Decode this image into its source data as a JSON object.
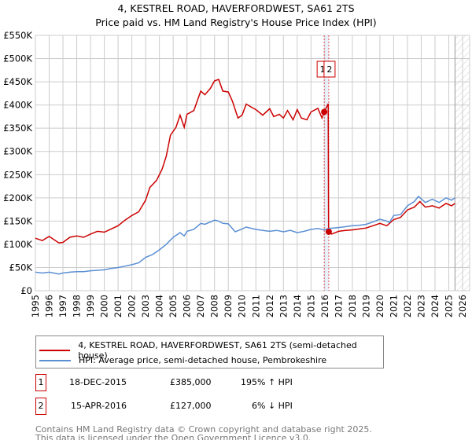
{
  "chart_data": {
    "type": "line",
    "title": "4, KESTREL ROAD, HAVERFORDWEST, SA61 2TS",
    "subtitle": "Price paid vs. HM Land Registry's House Price Index (HPI)",
    "xlabel": "",
    "ylabel": "",
    "xlim": [
      1995,
      2026
    ],
    "ylim": [
      0,
      550000
    ],
    "grid": true,
    "x_ticks": [
      "1995",
      "1996",
      "1997",
      "1998",
      "1999",
      "2000",
      "2001",
      "2002",
      "2003",
      "2004",
      "2005",
      "2006",
      "2007",
      "2008",
      "2009",
      "2010",
      "2011",
      "2012",
      "2013",
      "2014",
      "2015",
      "2016",
      "2017",
      "2018",
      "2019",
      "2020",
      "2021",
      "2022",
      "2023",
      "2024",
      "2025",
      "2026"
    ],
    "y_ticks": [
      {
        "v": 0,
        "label": "£0"
      },
      {
        "v": 50000,
        "label": "£50K"
      },
      {
        "v": 100000,
        "label": "£100K"
      },
      {
        "v": 150000,
        "label": "£150K"
      },
      {
        "v": 200000,
        "label": "£200K"
      },
      {
        "v": 250000,
        "label": "£250K"
      },
      {
        "v": 300000,
        "label": "£300K"
      },
      {
        "v": 350000,
        "label": "£350K"
      },
      {
        "v": 400000,
        "label": "£400K"
      },
      {
        "v": 450000,
        "label": "£450K"
      },
      {
        "v": 500000,
        "label": "£500K"
      },
      {
        "v": 550000,
        "label": "£550K"
      }
    ],
    "forecast_hatch_from": 2025.45,
    "series": [
      {
        "name": "4, KESTREL ROAD, HAVERFORDWEST, SA61 2TS (semi-detached house)",
        "color": "#cc0000",
        "points": [
          [
            1995,
            113
          ],
          [
            1995.5,
            108
          ],
          [
            1996,
            117
          ],
          [
            1996.7,
            103
          ],
          [
            1997,
            104
          ],
          [
            1997.5,
            115
          ],
          [
            1998,
            118
          ],
          [
            1998.5,
            115
          ],
          [
            1999,
            122
          ],
          [
            1999.5,
            128
          ],
          [
            2000,
            126
          ],
          [
            2000.5,
            133
          ],
          [
            2001,
            140
          ],
          [
            2001.5,
            152
          ],
          [
            2002,
            162
          ],
          [
            2002.5,
            170
          ],
          [
            2003,
            195
          ],
          [
            2003.3,
            222
          ],
          [
            2003.8,
            238
          ],
          [
            2004.2,
            262
          ],
          [
            2004.5,
            290
          ],
          [
            2004.8,
            335
          ],
          [
            2005.2,
            352
          ],
          [
            2005.5,
            378
          ],
          [
            2005.8,
            352
          ],
          [
            2006,
            380
          ],
          [
            2006.5,
            388
          ],
          [
            2007,
            430
          ],
          [
            2007.3,
            422
          ],
          [
            2007.7,
            436
          ],
          [
            2008,
            452
          ],
          [
            2008.3,
            455
          ],
          [
            2008.6,
            430
          ],
          [
            2009,
            428
          ],
          [
            2009.3,
            408
          ],
          [
            2009.7,
            372
          ],
          [
            2010,
            378
          ],
          [
            2010.3,
            402
          ],
          [
            2010.7,
            395
          ],
          [
            2011,
            390
          ],
          [
            2011.5,
            378
          ],
          [
            2012,
            392
          ],
          [
            2012.3,
            375
          ],
          [
            2012.7,
            380
          ],
          [
            2013,
            372
          ],
          [
            2013.3,
            388
          ],
          [
            2013.7,
            368
          ],
          [
            2014,
            390
          ],
          [
            2014.3,
            372
          ],
          [
            2014.7,
            368
          ],
          [
            2015,
            385
          ],
          [
            2015.5,
            393
          ],
          [
            2015.8,
            372
          ],
          [
            2015.96,
            385
          ],
          [
            2016.25,
            403
          ],
          [
            2016.28,
            127
          ],
          [
            2016.5,
            122
          ],
          [
            2017,
            128
          ],
          [
            2017.5,
            130
          ],
          [
            2018,
            131
          ],
          [
            2018.5,
            133
          ],
          [
            2019,
            135
          ],
          [
            2019.5,
            140
          ],
          [
            2020,
            145
          ],
          [
            2020.5,
            140
          ],
          [
            2021,
            153
          ],
          [
            2021.5,
            158
          ],
          [
            2022,
            174
          ],
          [
            2022.5,
            180
          ],
          [
            2022.9,
            192
          ],
          [
            2023.3,
            180
          ],
          [
            2023.8,
            183
          ],
          [
            2024.3,
            178
          ],
          [
            2024.8,
            188
          ],
          [
            2025.2,
            183
          ],
          [
            2025.45,
            188
          ]
        ]
      },
      {
        "name": "HPI: Average price, semi-detached house, Pembrokeshire",
        "color": "#5b8fd4",
        "points": [
          [
            1995,
            40
          ],
          [
            1995.5,
            38
          ],
          [
            1996,
            40
          ],
          [
            1996.7,
            36
          ],
          [
            1997,
            38
          ],
          [
            1997.5,
            40
          ],
          [
            1998,
            41
          ],
          [
            1998.5,
            41
          ],
          [
            1999,
            43
          ],
          [
            1999.5,
            44
          ],
          [
            2000,
            45
          ],
          [
            2000.5,
            48
          ],
          [
            2001,
            50
          ],
          [
            2001.5,
            53
          ],
          [
            2002,
            56
          ],
          [
            2002.5,
            60
          ],
          [
            2003,
            72
          ],
          [
            2003.5,
            78
          ],
          [
            2004,
            88
          ],
          [
            2004.5,
            100
          ],
          [
            2005,
            115
          ],
          [
            2005.5,
            125
          ],
          [
            2005.8,
            118
          ],
          [
            2006,
            128
          ],
          [
            2006.5,
            132
          ],
          [
            2007,
            145
          ],
          [
            2007.3,
            143
          ],
          [
            2007.7,
            148
          ],
          [
            2008,
            152
          ],
          [
            2008.3,
            150
          ],
          [
            2008.6,
            145
          ],
          [
            2009,
            144
          ],
          [
            2009.5,
            127
          ],
          [
            2010,
            133
          ],
          [
            2010.3,
            137
          ],
          [
            2011,
            132
          ],
          [
            2011.5,
            130
          ],
          [
            2012,
            128
          ],
          [
            2012.5,
            130
          ],
          [
            2013,
            127
          ],
          [
            2013.5,
            130
          ],
          [
            2014,
            125
          ],
          [
            2014.5,
            128
          ],
          [
            2015,
            132
          ],
          [
            2015.5,
            134
          ],
          [
            2015.96,
            131
          ],
          [
            2016.3,
            134
          ],
          [
            2017,
            136
          ],
          [
            2017.5,
            138
          ],
          [
            2018,
            140
          ],
          [
            2018.5,
            141
          ],
          [
            2019,
            143
          ],
          [
            2019.5,
            148
          ],
          [
            2020,
            154
          ],
          [
            2020.5,
            150
          ],
          [
            2020.7,
            147
          ],
          [
            2021,
            162
          ],
          [
            2021.5,
            164
          ],
          [
            2022,
            183
          ],
          [
            2022.5,
            192
          ],
          [
            2022.8,
            203
          ],
          [
            2023.3,
            190
          ],
          [
            2023.8,
            197
          ],
          [
            2024.3,
            190
          ],
          [
            2024.8,
            200
          ],
          [
            2025.2,
            195
          ],
          [
            2025.45,
            200
          ]
        ]
      }
    ],
    "sales": [
      {
        "id": "1",
        "x": 2015.96,
        "y": 385
      },
      {
        "id": "2",
        "x": 2016.29,
        "y": 127
      }
    ],
    "y_units": "thousands GBP"
  },
  "legend": {
    "red_label": "4, KESTREL ROAD, HAVERFORDWEST, SA61 2TS (semi-detached house)",
    "blue_label": "HPI: Average price, semi-detached house, Pembrokeshire"
  },
  "sales_table": [
    {
      "id": "1",
      "date": "18-DEC-2015",
      "price": "£385,000",
      "hpi": "195% ↑ HPI"
    },
    {
      "id": "2",
      "date": "15-APR-2016",
      "price": "£127,000",
      "hpi": "6% ↓ HPI"
    }
  ],
  "footer": {
    "line1": "Contains HM Land Registry data © Crown copyright and database right 2025.",
    "line2": "This data is licensed under the Open Government Licence v3.0."
  }
}
